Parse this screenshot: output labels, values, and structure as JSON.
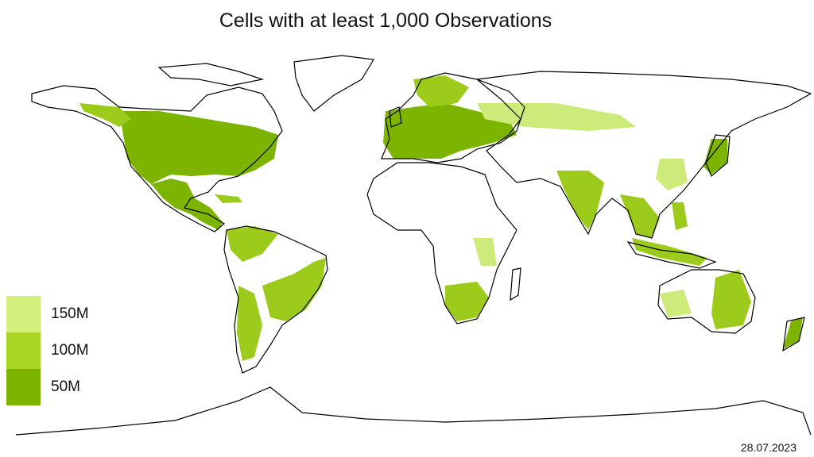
{
  "title": "Cells with at least 1,000 Observations",
  "date": "28.07.2023",
  "legend": [
    {
      "label": "150M",
      "color": "#d4f07c"
    },
    {
      "label": "100M",
      "color": "#a8d424"
    },
    {
      "label": "50M",
      "color": "#7cb400"
    }
  ],
  "colors": {
    "fill_dark": "#7cb400",
    "fill_mid": "#9ccb1c",
    "fill_light": "#cdeb7a",
    "outline": "#000000",
    "background": "#ffffff"
  }
}
